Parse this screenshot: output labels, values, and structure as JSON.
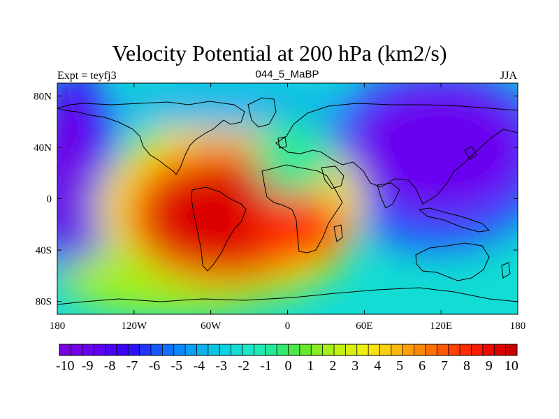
{
  "title": "Velocity Potential at 200 hPa (km2/s)",
  "left_string": "Expt = teyfj3",
  "center_string": "044_5_MaBP",
  "right_string": "JJA",
  "map": {
    "projection": "cylindrical-equidistant",
    "lon_range": [
      -180,
      180
    ],
    "lat_range": [
      -90,
      90
    ],
    "lon_ticks": [
      {
        "value": -180,
        "label": "180"
      },
      {
        "value": -120,
        "label": "120W"
      },
      {
        "value": -60,
        "label": "60W"
      },
      {
        "value": 0,
        "label": "0"
      },
      {
        "value": 60,
        "label": "60E"
      },
      {
        "value": 120,
        "label": "120E"
      },
      {
        "value": 180,
        "label": "180"
      }
    ],
    "lat_ticks": [
      {
        "value": 80,
        "label": "80N"
      },
      {
        "value": 40,
        "label": "40N"
      },
      {
        "value": 0,
        "label": "0"
      },
      {
        "value": -40,
        "label": "40S"
      },
      {
        "value": -80,
        "label": "80S"
      }
    ],
    "field_centers": [
      {
        "name": "max-atlantic",
        "lon": -45,
        "lat": -12,
        "value": 10.5
      },
      {
        "name": "min-asia",
        "lon": 120,
        "lat": 42,
        "value": -10
      },
      {
        "name": "min-dateline",
        "lon": -178,
        "lat": 15,
        "value": -9
      }
    ]
  },
  "colorbar": {
    "levels": [
      -10,
      -9.5,
      -9,
      -8.5,
      -8,
      -7.5,
      -7,
      -6.5,
      -6,
      -5.5,
      -5,
      -4.5,
      -4,
      -3.5,
      -3,
      -2.5,
      -2,
      -1.5,
      -1,
      -0.5,
      0,
      0.5,
      1,
      1.5,
      2,
      2.5,
      3,
      3.5,
      4,
      4.5,
      5,
      5.5,
      6,
      6.5,
      7,
      7.5,
      8,
      8.5,
      9,
      9.5,
      10
    ],
    "labels": [
      "-10",
      "-9",
      "-8",
      "-7",
      "-6",
      "-5",
      "-4",
      "-3",
      "-2",
      "-1",
      "0",
      "1",
      "2",
      "3",
      "4",
      "5",
      "6",
      "7",
      "8",
      "9",
      "10"
    ],
    "colors": [
      "#7700dd",
      "#7300e6",
      "#6a00f0",
      "#5d00f5",
      "#4b00f8",
      "#3a00fa",
      "#2a10ff",
      "#1f35ff",
      "#1458ff",
      "#0f70ff",
      "#0a88ff",
      "#0aa0f5",
      "#0ab3ee",
      "#0ac4e6",
      "#0ad2e0",
      "#12dcd4",
      "#1ee6c8",
      "#1fe9b5",
      "#22ea99",
      "#33ea70",
      "#4ae84a",
      "#66ea2e",
      "#88ec1e",
      "#a6f017",
      "#c2f012",
      "#daf010",
      "#f0f00e",
      "#f5e30c",
      "#fad00a",
      "#fbb809",
      "#fda008",
      "#fd8806",
      "#fe7005",
      "#fe5804",
      "#ff4003",
      "#ff2c02",
      "#ff1a01",
      "#ee0a00",
      "#dd0000",
      "#cc0000"
    ]
  }
}
